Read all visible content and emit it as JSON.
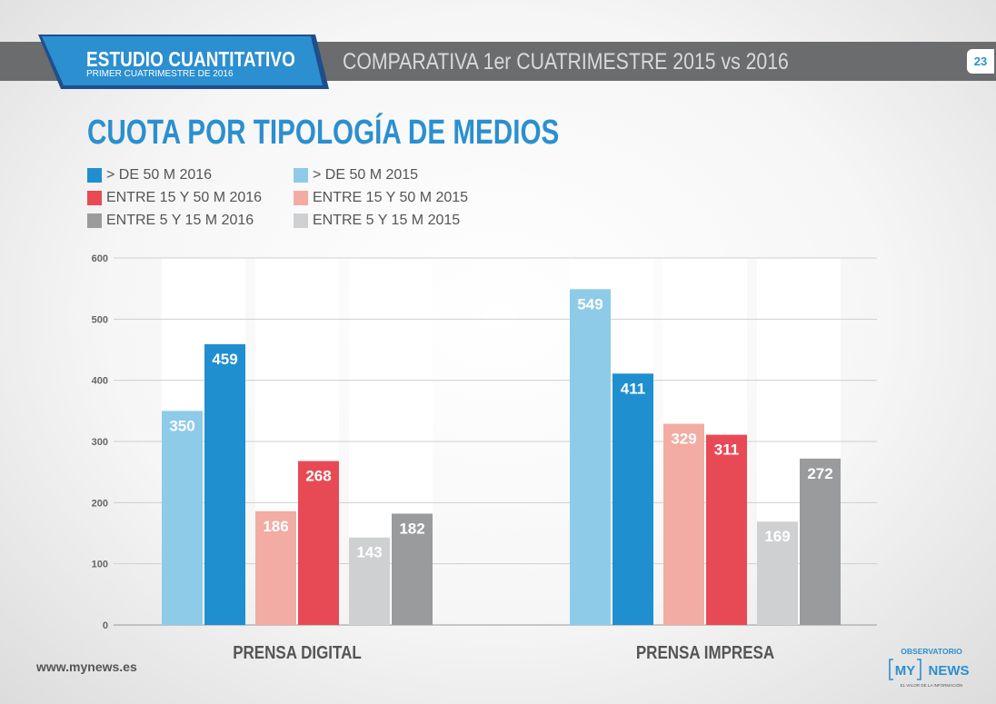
{
  "header": {
    "title": "ESTUDIO CUANTITATIVO",
    "subtitle": "PRIMER CUATRIMESTRE DE 2016",
    "comparison": "COMPARATIVA 1er CUATRIMESTRE 2015 vs 2016",
    "page_number": "23"
  },
  "footer": {
    "url": "www.mynews.es"
  },
  "logo": {
    "line1": "OBSERVATORIO",
    "my": "MY",
    "news": "NEWS",
    "tagline": "EL VALOR DE LA INFORMACIÓN"
  },
  "colors": {
    "brand_blue": "#2b8fd0",
    "header_gray": "#6b6c6e"
  },
  "chart_data": {
    "type": "bar",
    "title": "CUOTA POR TIPOLOGÍA DE MEDIOS",
    "categories": [
      "PRENSA DIGITAL",
      "PRENSA IMPRESA"
    ],
    "ylim": [
      0,
      600
    ],
    "yticks": [
      "0",
      "100",
      "200",
      "300",
      "400",
      "500",
      "600"
    ],
    "grid": true,
    "legend_position": "top-left",
    "groups": [
      {
        "series": [
          {
            "name": "> DE 50 M 2015",
            "values": [
              350,
              549
            ],
            "color": "#8ecbe8"
          },
          {
            "name": "> DE 50 M 2016",
            "values": [
              459,
              411
            ],
            "color": "#1f8fd0"
          }
        ]
      },
      {
        "series": [
          {
            "name": "ENTRE 15 Y 50 M 2015",
            "values": [
              186,
              329
            ],
            "color": "#f2aca3"
          },
          {
            "name": "ENTRE 15 Y 50 M 2016",
            "values": [
              268,
              311
            ],
            "color": "#e84a55"
          }
        ]
      },
      {
        "series": [
          {
            "name": "ENTRE 5 Y 15 M 2015",
            "values": [
              143,
              169
            ],
            "color": "#cfd0d2"
          },
          {
            "name": "ENTRE 5 Y 15 M 2016",
            "values": [
              182,
              272
            ],
            "color": "#9a9b9d"
          }
        ]
      }
    ],
    "legend": [
      {
        "label": "> DE 50 M 2016",
        "color": "#1f8fd0"
      },
      {
        "label": "> DE 50 M 2015",
        "color": "#8ecbe8"
      },
      {
        "label": "ENTRE 15 Y 50 M 2016",
        "color": "#e84a55"
      },
      {
        "label": "ENTRE 15 Y 50 M 2015",
        "color": "#f2aca3"
      },
      {
        "label": "ENTRE 5 Y 15 M 2016",
        "color": "#9a9b9d"
      },
      {
        "label": "ENTRE 5 Y 15 M 2015",
        "color": "#cfd0d2"
      }
    ]
  }
}
